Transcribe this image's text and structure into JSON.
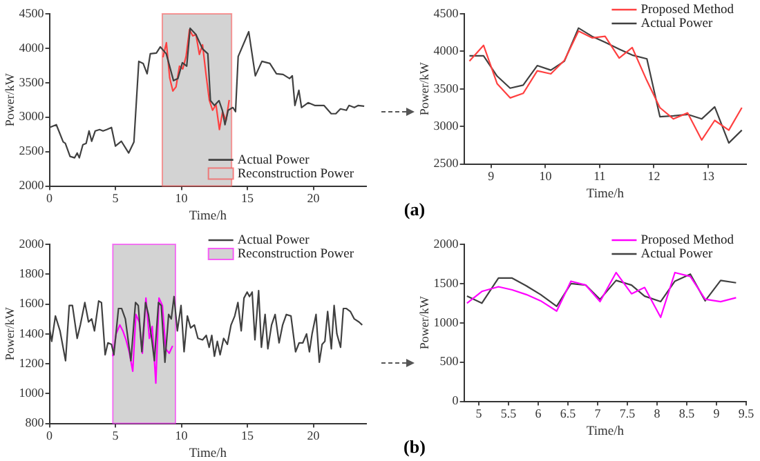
{
  "chart_data": [
    {
      "type": "line",
      "xlabel": "Time/h",
      "ylabel": "Power/kW",
      "xlim": [
        0,
        24
      ],
      "xticks": [
        0,
        5,
        10,
        15,
        20
      ],
      "ylim": [
        2000,
        4500
      ],
      "yticks": [
        2000,
        2500,
        3000,
        3500,
        4000,
        4500
      ],
      "grid": false,
      "legend": "bottom right",
      "marker": "none",
      "line_style": "solid",
      "bands": [
        {
          "axis": "x",
          "from": 8.55,
          "to": 13.8,
          "color": "#d3d3d3"
        }
      ],
      "series": [
        {
          "name": "Actual Power",
          "color": "#404040",
          "x": [
            0,
            0.52,
            1.04,
            1.2,
            1.56,
            1.9,
            2.1,
            2.26,
            2.53,
            2.78,
            3.0,
            3.2,
            3.47,
            3.8,
            4.06,
            4.34,
            4.7,
            5.0,
            5.45,
            6.0,
            6.4,
            6.77,
            7.1,
            7.4,
            7.64,
            8.1,
            8.4,
            8.85,
            9.4,
            9.73,
            10.07,
            10.4,
            10.66,
            11.1,
            11.6,
            12.0,
            12.2,
            12.5,
            12.85,
            13.1,
            13.3,
            13.54,
            13.9,
            14.1,
            14.3,
            15.1,
            15.6,
            16.1,
            16.7,
            17.2,
            17.7,
            18.2,
            18.4,
            18.6,
            18.9,
            19.1,
            19.6,
            20.1,
            20.8,
            21.35,
            21.7,
            22.05,
            22.5,
            22.7,
            23.1,
            23.4,
            23.85
          ],
          "values": [
            2850,
            2890,
            2640,
            2620,
            2430,
            2410,
            2480,
            2410,
            2600,
            2620,
            2800,
            2650,
            2800,
            2820,
            2800,
            2820,
            2850,
            2580,
            2650,
            2480,
            2640,
            3810,
            3780,
            3630,
            3920,
            3930,
            4020,
            3920,
            3530,
            3560,
            3790,
            3740,
            4290,
            4200,
            3990,
            3920,
            3240,
            3170,
            3240,
            3100,
            2890,
            3100,
            3140,
            3080,
            3880,
            4240,
            3600,
            3810,
            3780,
            3630,
            3620,
            3560,
            3600,
            3170,
            3390,
            3140,
            3210,
            3170,
            3170,
            3050,
            3050,
            3120,
            3100,
            3170,
            3140,
            3170,
            3160
          ]
        },
        {
          "name": "Reconstruction Power",
          "color": "#ff4040",
          "x": [
            8.6,
            8.86,
            9.11,
            9.35,
            9.59,
            9.85,
            10.1,
            10.35,
            10.61,
            10.86,
            11.1,
            11.36,
            11.6,
            11.87,
            12.11,
            12.36,
            12.62,
            12.88,
            13.12,
            13.38,
            13.62
          ],
          "values": [
            3870,
            4080,
            3570,
            3380,
            3440,
            3740,
            3700,
            3880,
            4270,
            4180,
            4200,
            3910,
            4050,
            3610,
            3250,
            3100,
            3180,
            2820,
            3080,
            2950,
            3250
          ]
        }
      ]
    },
    {
      "type": "line",
      "xlabel": "Time/h",
      "ylabel": "Power/kW",
      "xlim": [
        8.5,
        13.7
      ],
      "xticks": [
        9,
        10,
        11,
        12,
        13
      ],
      "ylim": [
        2500,
        4500
      ],
      "yticks": [
        2500,
        3000,
        3500,
        4000,
        4500
      ],
      "grid": false,
      "legend": "top right",
      "marker": "none",
      "line_style": "solid",
      "annotations": [
        "(a)"
      ],
      "series": [
        {
          "name": "Proposed Method",
          "color": "#ff4040",
          "x": [
            8.6,
            8.86,
            9.11,
            9.35,
            9.59,
            9.85,
            10.1,
            10.35,
            10.61,
            10.86,
            11.1,
            11.36,
            11.6,
            11.87,
            12.11,
            12.36,
            12.62,
            12.88,
            13.12,
            13.38,
            13.62
          ],
          "values": [
            3870,
            4080,
            3570,
            3380,
            3440,
            3740,
            3700,
            3880,
            4270,
            4180,
            4200,
            3910,
            4050,
            3610,
            3250,
            3100,
            3180,
            2820,
            3080,
            2950,
            3250
          ]
        },
        {
          "name": "Actual Power",
          "color": "#404040",
          "x": [
            8.6,
            8.86,
            9.11,
            9.35,
            9.59,
            9.85,
            10.1,
            10.35,
            10.61,
            10.86,
            11.1,
            11.36,
            11.6,
            11.87,
            12.11,
            12.36,
            12.62,
            12.88,
            13.12,
            13.38,
            13.62
          ],
          "values": [
            3940,
            3940,
            3670,
            3510,
            3550,
            3810,
            3750,
            3870,
            4310,
            4200,
            4120,
            4030,
            3950,
            3900,
            3130,
            3140,
            3160,
            3100,
            3260,
            2780,
            2950
          ]
        }
      ]
    },
    {
      "type": "line",
      "xlabel": "Time/h",
      "ylabel": "Power/kW",
      "xlim": [
        0,
        24
      ],
      "xticks": [
        0,
        5,
        10,
        15,
        20
      ],
      "ylim": [
        800,
        2000
      ],
      "yticks": [
        800,
        1000,
        1200,
        1400,
        1600,
        1800,
        2000
      ],
      "grid": false,
      "legend": "top right",
      "marker": "none",
      "line_style": "solid",
      "bands": [
        {
          "axis": "x",
          "from": 4.8,
          "to": 9.55,
          "color": "#d3d3d3"
        }
      ],
      "series": [
        {
          "name": "Actual Power",
          "color": "#404040",
          "x": [
            0,
            0.17,
            0.45,
            0.8,
            1.22,
            1.5,
            1.74,
            2.1,
            2.34,
            2.68,
            2.96,
            3.2,
            3.41,
            3.73,
            3.94,
            4.22,
            4.43,
            4.7,
            4.88,
            5.23,
            5.47,
            5.75,
            6.17,
            6.52,
            6.73,
            7.0,
            7.28,
            7.5,
            7.77,
            7.95,
            8.26,
            8.47,
            8.75,
            9.03,
            9.23,
            9.44,
            9.69,
            9.97,
            10.2,
            10.45,
            10.7,
            10.98,
            11.25,
            11.6,
            11.88,
            12.1,
            12.3,
            12.5,
            12.72,
            12.93,
            13.2,
            13.48,
            13.76,
            14.04,
            14.28,
            14.53,
            14.74,
            14.98,
            15.16,
            15.36,
            15.57,
            15.85,
            16.06,
            16.34,
            16.55,
            16.83,
            17.1,
            17.4,
            17.67,
            17.95,
            18.3,
            18.65,
            18.92,
            19.2,
            19.48,
            19.7,
            19.9,
            20.2,
            20.45,
            20.66,
            20.87,
            21.08,
            21.36,
            21.57,
            21.78,
            22.06,
            22.27,
            22.5,
            22.8,
            23.1,
            23.45,
            23.7
          ],
          "values": [
            1440,
            1350,
            1520,
            1420,
            1220,
            1590,
            1590,
            1370,
            1460,
            1610,
            1480,
            1500,
            1420,
            1620,
            1610,
            1260,
            1340,
            1330,
            1260,
            1570,
            1570,
            1500,
            1220,
            1610,
            1590,
            1280,
            1610,
            1530,
            1350,
            1220,
            1610,
            1590,
            1210,
            1530,
            1500,
            1650,
            1420,
            1590,
            1280,
            1520,
            1440,
            1460,
            1370,
            1360,
            1390,
            1310,
            1390,
            1250,
            1350,
            1260,
            1370,
            1330,
            1460,
            1520,
            1610,
            1420,
            1640,
            1680,
            1650,
            1680,
            1360,
            1690,
            1310,
            1530,
            1300,
            1460,
            1530,
            1340,
            1460,
            1530,
            1520,
            1280,
            1340,
            1340,
            1400,
            1280,
            1400,
            1530,
            1210,
            1330,
            1350,
            1550,
            1300,
            1590,
            1400,
            1310,
            1570,
            1570,
            1550,
            1500,
            1480,
            1460
          ]
        },
        {
          "name": "Reconstruction Power",
          "color": "#ff00ff",
          "x": [
            4.8,
            5.05,
            5.33,
            5.56,
            5.8,
            6.04,
            6.31,
            6.55,
            6.8,
            7.04,
            7.31,
            7.57,
            7.79,
            8.06,
            8.3,
            8.56,
            8.81,
            9.07,
            9.33
          ],
          "values": [
            1250,
            1400,
            1460,
            1420,
            1360,
            1280,
            1150,
            1530,
            1480,
            1270,
            1640,
            1370,
            1450,
            1070,
            1640,
            1590,
            1300,
            1270,
            1320
          ]
        }
      ]
    },
    {
      "type": "line",
      "xlabel": "Time/h",
      "ylabel": "Power/kW",
      "xlim": [
        4.75,
        9.5
      ],
      "xticks": [
        5,
        5.5,
        6,
        6.5,
        7,
        7.5,
        8,
        8.5,
        9,
        9.5
      ],
      "ylim": [
        0,
        2000
      ],
      "yticks": [
        0,
        500,
        1000,
        1500,
        2000
      ],
      "grid": false,
      "legend": "top right",
      "marker": "none",
      "line_style": "solid",
      "annotations": [
        "(b)"
      ],
      "series": [
        {
          "name": "Proposed Method",
          "color": "#ff00ff",
          "x": [
            4.8,
            5.05,
            5.33,
            5.56,
            5.8,
            6.04,
            6.31,
            6.55,
            6.8,
            7.04,
            7.31,
            7.57,
            7.79,
            8.06,
            8.3,
            8.56,
            8.81,
            9.07,
            9.33
          ],
          "values": [
            1250,
            1400,
            1460,
            1420,
            1360,
            1280,
            1150,
            1530,
            1480,
            1270,
            1640,
            1370,
            1450,
            1070,
            1640,
            1590,
            1300,
            1270,
            1320
          ]
        },
        {
          "name": "Actual Power",
          "color": "#404040",
          "x": [
            4.8,
            5.05,
            5.33,
            5.56,
            5.8,
            6.04,
            6.31,
            6.55,
            6.8,
            7.04,
            7.31,
            7.57,
            7.79,
            8.06,
            8.3,
            8.56,
            8.81,
            9.07,
            9.33
          ],
          "values": [
            1340,
            1250,
            1570,
            1570,
            1470,
            1360,
            1210,
            1500,
            1480,
            1300,
            1540,
            1480,
            1340,
            1270,
            1530,
            1620,
            1280,
            1540,
            1510
          ]
        }
      ]
    }
  ]
}
